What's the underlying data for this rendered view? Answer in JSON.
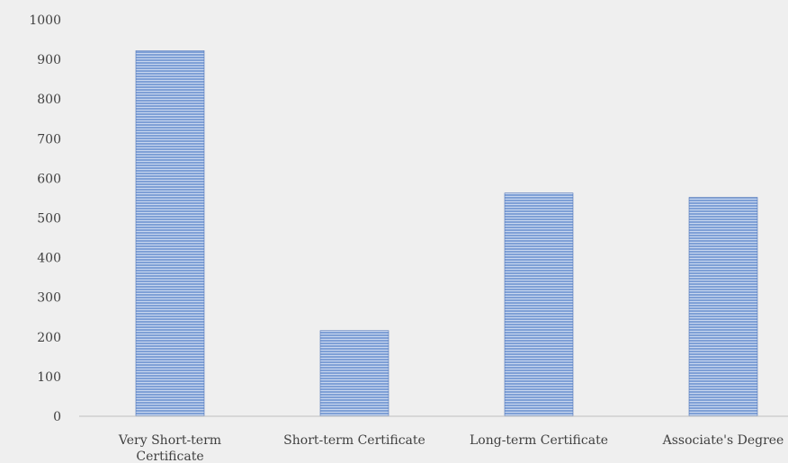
{
  "chart_data": {
    "type": "bar",
    "categories": [
      "Very Short-term Certificate",
      "Short-term Certificate",
      "Long-term Certificate",
      "Associate's Degree"
    ],
    "category_label_lines": [
      [
        "Very Short-term",
        "Certificate"
      ],
      [
        "Short-term Certificate"
      ],
      [
        "Long-term Certificate"
      ],
      [
        "Associate's Degree"
      ]
    ],
    "values": [
      922,
      216,
      563,
      552
    ],
    "ylim": [
      0,
      1000
    ],
    "yticks": [
      0,
      100,
      200,
      300,
      400,
      500,
      600,
      700,
      800,
      900,
      1000
    ],
    "grid": false,
    "legend": "none",
    "colors": {
      "bar_fill": "#6f93cf",
      "bar_stripe": "#ffffff",
      "bar_border": "#4f74b8",
      "axis": "#bfbfbf",
      "text": "#404040",
      "background": "#efefef"
    }
  }
}
